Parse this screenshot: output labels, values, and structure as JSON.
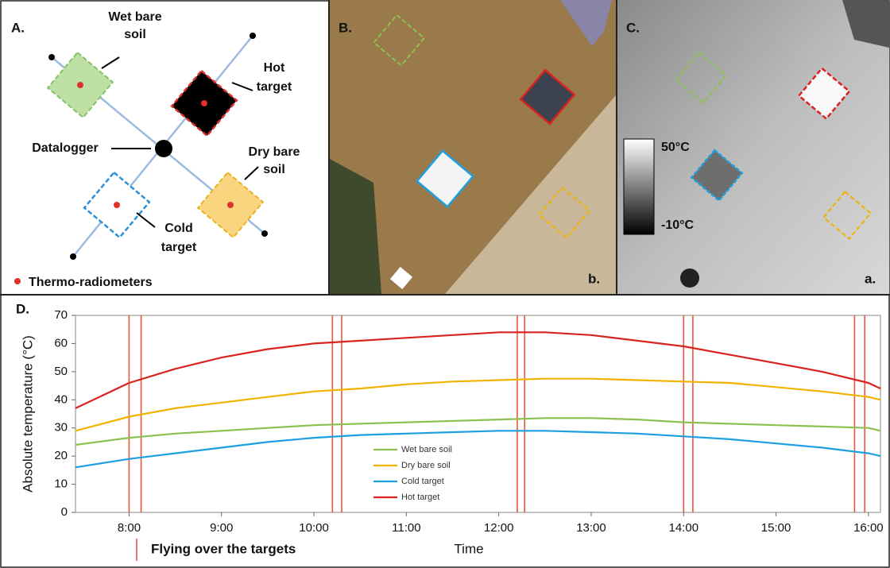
{
  "panels": {
    "a": {
      "label": "A.",
      "annotations": {
        "wet": [
          "Wet bare",
          "soil"
        ],
        "hot": [
          "Hot",
          "target"
        ],
        "datalogger": "Datalogger",
        "dry": [
          "Dry bare",
          "soil"
        ],
        "cold": [
          "Cold",
          "target"
        ]
      },
      "legend": "Thermo-radiometers"
    },
    "b": {
      "label": "B.",
      "corner_label": "b."
    },
    "c": {
      "label": "C.",
      "corner_label": "a.",
      "colorbar_max": "50°C",
      "colorbar_min": "-10°C"
    }
  },
  "chart_data": {
    "type": "line",
    "label": "D.",
    "x_label": "Time",
    "y_label": "Absolute temperature (°C)",
    "x": [
      7.42,
      8,
      8.5,
      9,
      9.5,
      10,
      10.5,
      11,
      11.5,
      12,
      12.5,
      13,
      13.5,
      14,
      14.5,
      15,
      15.5,
      16,
      16.13
    ],
    "series": [
      {
        "name": "Wet bare soil",
        "color": "#8cc152",
        "values": [
          24,
          26.5,
          28,
          29,
          30,
          31,
          31.5,
          32,
          32.5,
          33,
          33.5,
          33.5,
          33,
          32,
          31.5,
          31,
          30.5,
          30,
          29
        ]
      },
      {
        "name": "Dry bare soil",
        "color": "#f0b400",
        "values": [
          29,
          34,
          37,
          39,
          41,
          43,
          44,
          45.5,
          46.5,
          47,
          47.5,
          47.5,
          47,
          46.5,
          46,
          44.5,
          43,
          41,
          40
        ]
      },
      {
        "name": "Cold target",
        "color": "#1e9fe0",
        "values": [
          16,
          19,
          21,
          23,
          25,
          26.5,
          27.5,
          28,
          28.5,
          29,
          29,
          28.5,
          28,
          27,
          26,
          24.5,
          23,
          21,
          20
        ]
      },
      {
        "name": "Hot target",
        "color": "#d8231f",
        "values": [
          37,
          46,
          51,
          55,
          58,
          60,
          61,
          62,
          63,
          64,
          64,
          63,
          61,
          59,
          56,
          53,
          50,
          46,
          44
        ]
      }
    ],
    "xlim": [
      7.42,
      16.13
    ],
    "ylim": [
      0,
      70
    ],
    "xticks": [
      {
        "value": 8,
        "label": "8:00"
      },
      {
        "value": 9,
        "label": "9:00"
      },
      {
        "value": 10,
        "label": "10:00"
      },
      {
        "value": 11,
        "label": "11:00"
      },
      {
        "value": 12,
        "label": "12:00"
      },
      {
        "value": 13,
        "label": "13:00"
      },
      {
        "value": 14,
        "label": "14:00"
      },
      {
        "value": 15,
        "label": "15:00"
      },
      {
        "value": 16,
        "label": "16:00"
      }
    ],
    "yticks": [
      0,
      10,
      20,
      30,
      40,
      50,
      60,
      70
    ],
    "flight_times": [
      8.0,
      8.13,
      10.2,
      10.3,
      12.2,
      12.28,
      14.0,
      14.1,
      15.85,
      15.96
    ],
    "flight_color": "#e8553a",
    "flight_label": "Flying over the targets"
  }
}
